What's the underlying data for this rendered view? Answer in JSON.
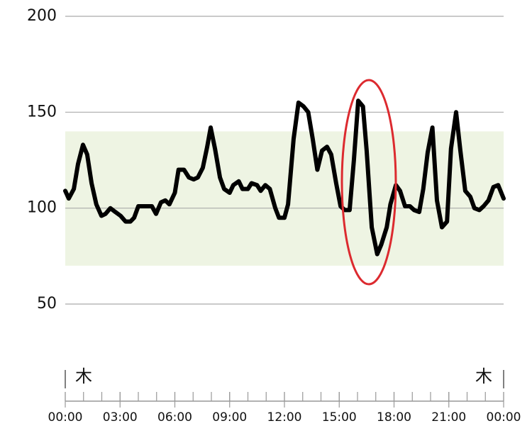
{
  "chart_data": {
    "type": "line",
    "x": [
      0,
      0.19,
      0.47,
      0.7,
      0.97,
      1.2,
      1.44,
      1.7,
      1.98,
      2.2,
      2.47,
      2.74,
      3.03,
      3.3,
      3.57,
      3.77,
      4.0,
      4.27,
      4.5,
      4.74,
      4.97,
      5.24,
      5.48,
      5.7,
      6.0,
      6.2,
      6.5,
      6.77,
      7.03,
      7.26,
      7.53,
      7.77,
      7.96,
      8.2,
      8.47,
      8.7,
      9.0,
      9.2,
      9.5,
      9.7,
      10.0,
      10.2,
      10.5,
      10.7,
      10.95,
      11.2,
      11.5,
      11.7,
      12.0,
      12.2,
      12.5,
      12.77,
      13.05,
      13.3,
      13.55,
      13.8,
      14.06,
      14.33,
      14.56,
      14.83,
      15.07,
      15.3,
      15.57,
      15.8,
      16.04,
      16.3,
      16.5,
      16.78,
      17.08,
      17.3,
      17.6,
      17.8,
      18.1,
      18.33,
      18.6,
      18.87,
      19.1,
      19.38,
      19.6,
      19.84,
      20.1,
      20.35,
      20.62,
      20.9,
      21.12,
      21.4,
      21.63,
      21.9,
      22.17,
      22.4,
      22.67,
      22.9,
      23.17,
      23.44,
      23.7,
      24.0
    ],
    "series": [
      {
        "color": "#000000",
        "values": [
          109,
          105,
          110,
          123,
          133,
          128,
          113,
          102,
          96,
          97,
          100,
          98,
          96,
          93,
          93,
          95,
          101,
          101,
          101,
          101,
          97,
          103,
          104,
          102,
          108,
          120,
          120,
          116,
          115,
          116,
          121,
          132,
          142,
          131,
          116,
          110,
          108,
          112,
          114,
          110,
          110,
          113,
          112,
          109,
          112,
          110,
          100,
          95,
          95,
          102,
          136,
          155,
          153,
          150,
          136,
          120,
          130,
          132,
          128,
          113,
          101,
          99,
          99,
          125,
          156,
          153,
          130,
          90,
          76,
          81,
          90,
          102,
          112,
          109,
          101,
          101,
          99,
          98,
          110,
          129,
          142,
          104,
          90,
          93,
          131,
          150,
          130,
          109,
          106,
          100,
          99,
          101,
          104,
          111,
          112,
          105
        ]
      }
    ],
    "xlim": [
      0,
      24
    ],
    "xticks": [
      {
        "value": 0,
        "label": "00:00"
      },
      {
        "value": 3,
        "label": "03:00"
      },
      {
        "value": 6,
        "label": "06:00"
      },
      {
        "value": 9,
        "label": "09:00"
      },
      {
        "value": 12,
        "label": "12:00"
      },
      {
        "value": 15,
        "label": "15:00"
      },
      {
        "value": 18,
        "label": "18:00"
      },
      {
        "value": 21,
        "label": "21:00"
      },
      {
        "value": 24,
        "label": "00:00"
      }
    ],
    "ylim": [
      50,
      200
    ],
    "yticks": [
      50,
      100,
      150,
      200
    ],
    "grid": true,
    "target_range": [
      70,
      140
    ],
    "target_color": "#eef4e3",
    "day_labels": [
      "木",
      "木"
    ]
  }
}
